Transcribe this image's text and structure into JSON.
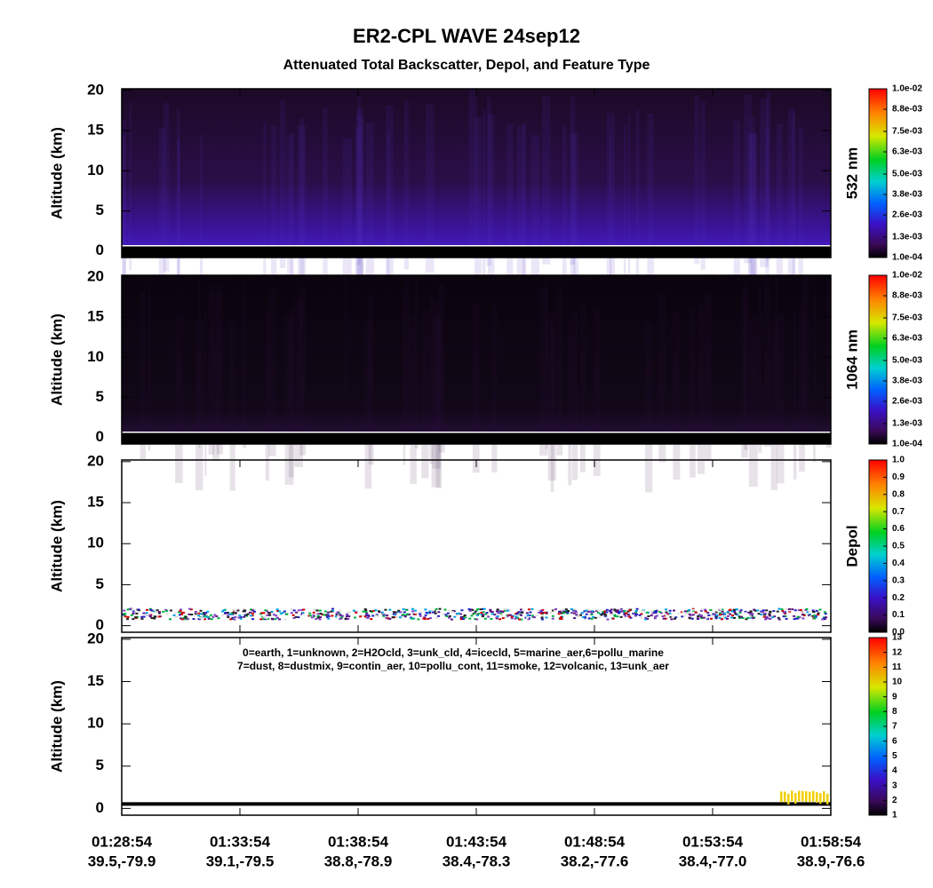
{
  "title": "ER2-CPL WAVE 24sep12",
  "subtitle": "Attenuated Total Backscatter, Depol, and Feature Type",
  "x_axis": {
    "times": [
      "01:28:54",
      "01:33:54",
      "01:38:54",
      "01:43:54",
      "01:48:54",
      "01:53:54",
      "01:58:54"
    ],
    "coords": [
      "39.5,-79.9",
      "39.1,-79.5",
      "38.8,-78.9",
      "38.4,-78.3",
      "38.2,-77.6",
      "38.4,-77.0",
      "38.9,-76.6"
    ]
  },
  "chart_data": [
    {
      "type": "image",
      "style": "backscatter532",
      "ylabel": "Altitude (km)",
      "ylim": [
        -0.8,
        20.2
      ],
      "yticks": [
        0,
        5,
        10,
        15,
        20
      ],
      "colorbar": {
        "label": "532 nm",
        "clim": [
          0.0001,
          0.01
        ],
        "ticks": [
          {
            "value": 0.0001,
            "label": "1.0e-04"
          },
          {
            "value": 0.0013,
            "label": "1.3e-03"
          },
          {
            "value": 0.0026,
            "label": "2.6e-03"
          },
          {
            "value": 0.0038,
            "label": "3.8e-03"
          },
          {
            "value": 0.005,
            "label": "5.0e-03"
          },
          {
            "value": 0.0063,
            "label": "6.3e-03"
          },
          {
            "value": 0.0075,
            "label": "7.5e-03"
          },
          {
            "value": 0.0088,
            "label": "8.8e-03"
          },
          {
            "value": 0.01,
            "label": "1.0e-02"
          }
        ]
      }
    },
    {
      "type": "image",
      "style": "backscatter1064",
      "ylabel": "Altitude (km)",
      "ylim": [
        -0.8,
        20.2
      ],
      "yticks": [
        0,
        5,
        10,
        15,
        20
      ],
      "colorbar": {
        "label": "1064 nm",
        "clim": [
          0.0001,
          0.01
        ],
        "ticks": [
          {
            "value": 0.0001,
            "label": "1.0e-04"
          },
          {
            "value": 0.0013,
            "label": "1.3e-03"
          },
          {
            "value": 0.0026,
            "label": "2.6e-03"
          },
          {
            "value": 0.0038,
            "label": "3.8e-03"
          },
          {
            "value": 0.005,
            "label": "5.0e-03"
          },
          {
            "value": 0.0063,
            "label": "6.3e-03"
          },
          {
            "value": 0.0075,
            "label": "7.5e-03"
          },
          {
            "value": 0.0088,
            "label": "8.8e-03"
          },
          {
            "value": 0.01,
            "label": "1.0e-02"
          }
        ]
      }
    },
    {
      "type": "image",
      "style": "depol",
      "ylabel": "Altitude (km)",
      "ylim": [
        -0.8,
        20.2
      ],
      "yticks": [
        0,
        5,
        10,
        15,
        20
      ],
      "colorbar": {
        "label": "Depol",
        "clim": [
          0,
          1
        ],
        "ticks": [
          {
            "value": 0,
            "label": "0.0"
          },
          0.1,
          0.2,
          0.3,
          0.4,
          0.5,
          0.6,
          0.7,
          0.8,
          0.9,
          {
            "value": 1,
            "label": "1.0"
          }
        ]
      }
    },
    {
      "type": "image",
      "style": "feature",
      "ylabel": "Altitude (km)",
      "ylim": [
        -0.8,
        20.2
      ],
      "yticks": [
        0,
        5,
        10,
        15,
        20
      ],
      "legend": [
        "0=earth, 1=unknown, 2=H2Ocld, 3=unk_cld, 4=icecld, 5=marine_aer,6=pollu_marine",
        "7=dust, 8=dustmix, 9=contin_aer, 10=pollu_cont, 11=smoke, 12=volcanic, 13=unk_aer"
      ],
      "colorbar": {
        "clim": [
          1,
          13
        ],
        "ticks": [
          1,
          2,
          3,
          4,
          5,
          6,
          7,
          8,
          9,
          10,
          11,
          12,
          13
        ]
      }
    }
  ]
}
